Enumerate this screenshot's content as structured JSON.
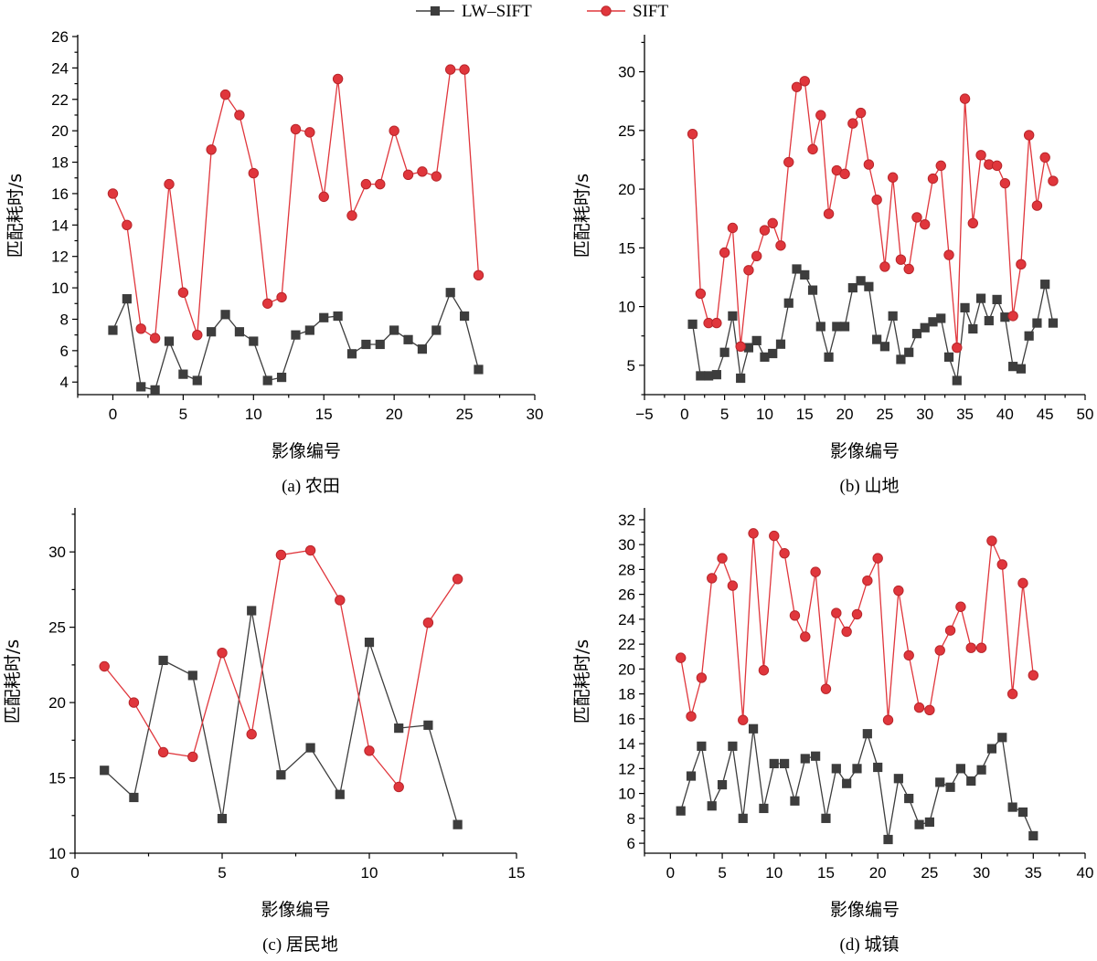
{
  "legend": {
    "items": [
      {
        "label": "LW–SIFT",
        "color": "#3d3d3d",
        "marker": "square"
      },
      {
        "label": "SIFT",
        "color": "#e0363c",
        "marker": "circle"
      }
    ]
  },
  "chart_data": [
    {
      "type": "line",
      "caption": "(a) 农田",
      "xlabel": "影像编号",
      "ylabel": "匹配耗时/s",
      "xlim": [
        -2.5,
        30
      ],
      "ylim": [
        3.2,
        26
      ],
      "xticks": [
        0,
        5,
        10,
        15,
        20,
        25,
        30
      ],
      "yticks": [
        4,
        6,
        8,
        10,
        12,
        14,
        16,
        18,
        20,
        22,
        24,
        26
      ],
      "series": [
        {
          "name": "LW–SIFT",
          "x": [
            0,
            1,
            2,
            3,
            4,
            5,
            6,
            7,
            8,
            9,
            10,
            11,
            12,
            13,
            14,
            15,
            16,
            17,
            18,
            19,
            20,
            21,
            22,
            23,
            24,
            25,
            26
          ],
          "y": [
            7.3,
            9.3,
            3.7,
            3.5,
            6.6,
            4.5,
            4.1,
            7.2,
            8.3,
            7.2,
            6.6,
            4.1,
            4.3,
            7.0,
            7.3,
            8.1,
            8.2,
            5.8,
            6.4,
            6.4,
            7.3,
            6.7,
            6.1,
            7.3,
            9.7,
            8.2,
            4.8
          ]
        },
        {
          "name": "SIFT",
          "x": [
            0,
            1,
            2,
            3,
            4,
            5,
            6,
            7,
            8,
            9,
            10,
            11,
            12,
            13,
            14,
            15,
            16,
            17,
            18,
            19,
            20,
            21,
            22,
            23,
            24,
            25,
            26
          ],
          "y": [
            16.0,
            14.0,
            7.4,
            6.8,
            16.6,
            9.7,
            7.0,
            18.8,
            22.3,
            21.0,
            17.3,
            9.0,
            9.4,
            20.1,
            19.9,
            15.8,
            23.3,
            14.6,
            16.6,
            16.6,
            20.0,
            17.2,
            17.4,
            17.1,
            23.9,
            23.9,
            10.8
          ]
        }
      ]
    },
    {
      "type": "line",
      "caption": "(b) 山地",
      "xlabel": "影像编号",
      "ylabel": "匹配耗时/s",
      "xlim": [
        -5,
        50
      ],
      "ylim": [
        2.5,
        33
      ],
      "xticks": [
        -5,
        0,
        5,
        10,
        15,
        20,
        25,
        30,
        35,
        40,
        45,
        50
      ],
      "yticks": [
        5,
        10,
        15,
        20,
        25,
        30
      ],
      "series": [
        {
          "name": "LW–SIFT",
          "x": [
            1,
            2,
            3,
            4,
            5,
            6,
            7,
            8,
            9,
            10,
            11,
            12,
            13,
            14,
            15,
            16,
            17,
            18,
            19,
            20,
            21,
            22,
            23,
            24,
            25,
            26,
            27,
            28,
            29,
            30,
            31,
            32,
            33,
            34,
            35,
            36,
            37,
            38,
            39,
            40,
            41,
            42,
            43,
            44,
            45,
            46
          ],
          "y": [
            8.5,
            4.1,
            4.1,
            4.2,
            6.1,
            9.2,
            3.9,
            6.5,
            7.1,
            5.7,
            6.0,
            6.8,
            10.3,
            13.2,
            12.7,
            11.4,
            8.3,
            5.7,
            8.3,
            8.3,
            11.6,
            12.2,
            11.7,
            7.2,
            6.6,
            9.2,
            5.5,
            6.1,
            7.7,
            8.2,
            8.7,
            9.0,
            5.7,
            3.7,
            9.9,
            8.1,
            10.7,
            8.8,
            10.6,
            9.1,
            4.9,
            4.7,
            7.5,
            8.6,
            11.9,
            8.6
          ]
        },
        {
          "name": "SIFT",
          "x": [
            1,
            2,
            3,
            4,
            5,
            6,
            7,
            8,
            9,
            10,
            11,
            12,
            13,
            14,
            15,
            16,
            17,
            18,
            19,
            20,
            21,
            22,
            23,
            24,
            25,
            26,
            27,
            28,
            29,
            30,
            31,
            32,
            33,
            34,
            35,
            36,
            37,
            38,
            39,
            40,
            41,
            42,
            43,
            44,
            45,
            46
          ],
          "y": [
            24.7,
            11.1,
            8.6,
            8.6,
            14.6,
            16.7,
            6.6,
            13.1,
            14.3,
            16.5,
            17.1,
            15.2,
            22.3,
            28.7,
            29.2,
            23.4,
            26.3,
            17.9,
            21.6,
            21.3,
            25.6,
            26.5,
            22.1,
            19.1,
            13.4,
            21.0,
            14.0,
            13.2,
            17.6,
            17.0,
            20.9,
            22.0,
            14.4,
            6.5,
            27.7,
            17.1,
            22.9,
            22.1,
            22.0,
            20.5,
            9.2,
            13.6,
            24.6,
            18.6,
            22.7,
            20.7
          ]
        }
      ]
    },
    {
      "type": "line",
      "caption": "(c) 居民地",
      "xlabel": "影像编号",
      "ylabel": "匹配耗时/s",
      "xlim": [
        0,
        15
      ],
      "ylim": [
        10,
        32.8
      ],
      "xticks": [
        0,
        5,
        10,
        15
      ],
      "yticks": [
        10,
        15,
        20,
        25,
        30
      ],
      "series": [
        {
          "name": "LW–SIFT",
          "x": [
            1,
            2,
            3,
            4,
            5,
            6,
            7,
            8,
            9,
            10,
            11,
            12,
            13
          ],
          "y": [
            15.5,
            13.7,
            22.8,
            21.8,
            12.3,
            26.1,
            15.2,
            17.0,
            13.9,
            24.0,
            18.3,
            18.5,
            11.9
          ]
        },
        {
          "name": "SIFT",
          "x": [
            1,
            2,
            3,
            4,
            5,
            6,
            7,
            8,
            9,
            10,
            11,
            12,
            13
          ],
          "y": [
            22.4,
            20.0,
            16.7,
            16.4,
            23.3,
            17.9,
            29.8,
            30.1,
            26.8,
            16.8,
            14.4,
            25.3,
            28.2
          ]
        }
      ]
    },
    {
      "type": "line",
      "caption": "(d) 城镇",
      "xlabel": "影像编号",
      "ylabel": "匹配耗时/s",
      "xlim": [
        -2.5,
        40
      ],
      "ylim": [
        5.2,
        32.8
      ],
      "xticks": [
        0,
        5,
        10,
        15,
        20,
        25,
        30,
        35,
        40
      ],
      "yticks": [
        6,
        8,
        10,
        12,
        14,
        16,
        18,
        20,
        22,
        24,
        26,
        28,
        30,
        32
      ],
      "series": [
        {
          "name": "LW–SIFT",
          "x": [
            1,
            2,
            3,
            4,
            5,
            6,
            7,
            8,
            9,
            10,
            11,
            12,
            13,
            14,
            15,
            16,
            17,
            18,
            19,
            20,
            21,
            22,
            23,
            24,
            25,
            26,
            27,
            28,
            29,
            30,
            31,
            32,
            33,
            34,
            35
          ],
          "y": [
            8.6,
            11.4,
            13.8,
            9.0,
            10.7,
            13.8,
            8.0,
            15.2,
            8.8,
            12.4,
            12.4,
            9.4,
            12.8,
            13.0,
            8.0,
            12.0,
            10.8,
            12.0,
            14.8,
            12.1,
            6.3,
            11.2,
            9.6,
            7.5,
            7.7,
            10.9,
            10.5,
            12.0,
            11.0,
            11.9,
            13.6,
            14.5,
            8.9,
            8.5,
            6.6
          ]
        },
        {
          "name": "SIFT",
          "x": [
            1,
            2,
            3,
            4,
            5,
            6,
            7,
            8,
            9,
            10,
            11,
            12,
            13,
            14,
            15,
            16,
            17,
            18,
            19,
            20,
            21,
            22,
            23,
            24,
            25,
            26,
            27,
            28,
            29,
            30,
            31,
            32,
            33,
            34,
            35
          ],
          "y": [
            20.9,
            16.2,
            19.3,
            27.3,
            28.9,
            26.7,
            15.9,
            30.9,
            19.9,
            30.7,
            29.3,
            24.3,
            22.6,
            27.8,
            18.4,
            24.5,
            23.0,
            24.4,
            27.1,
            28.9,
            15.9,
            26.3,
            21.1,
            16.9,
            16.7,
            21.5,
            23.1,
            25.0,
            21.7,
            21.7,
            30.3,
            28.4,
            18.0,
            26.9,
            19.5
          ]
        }
      ]
    }
  ]
}
